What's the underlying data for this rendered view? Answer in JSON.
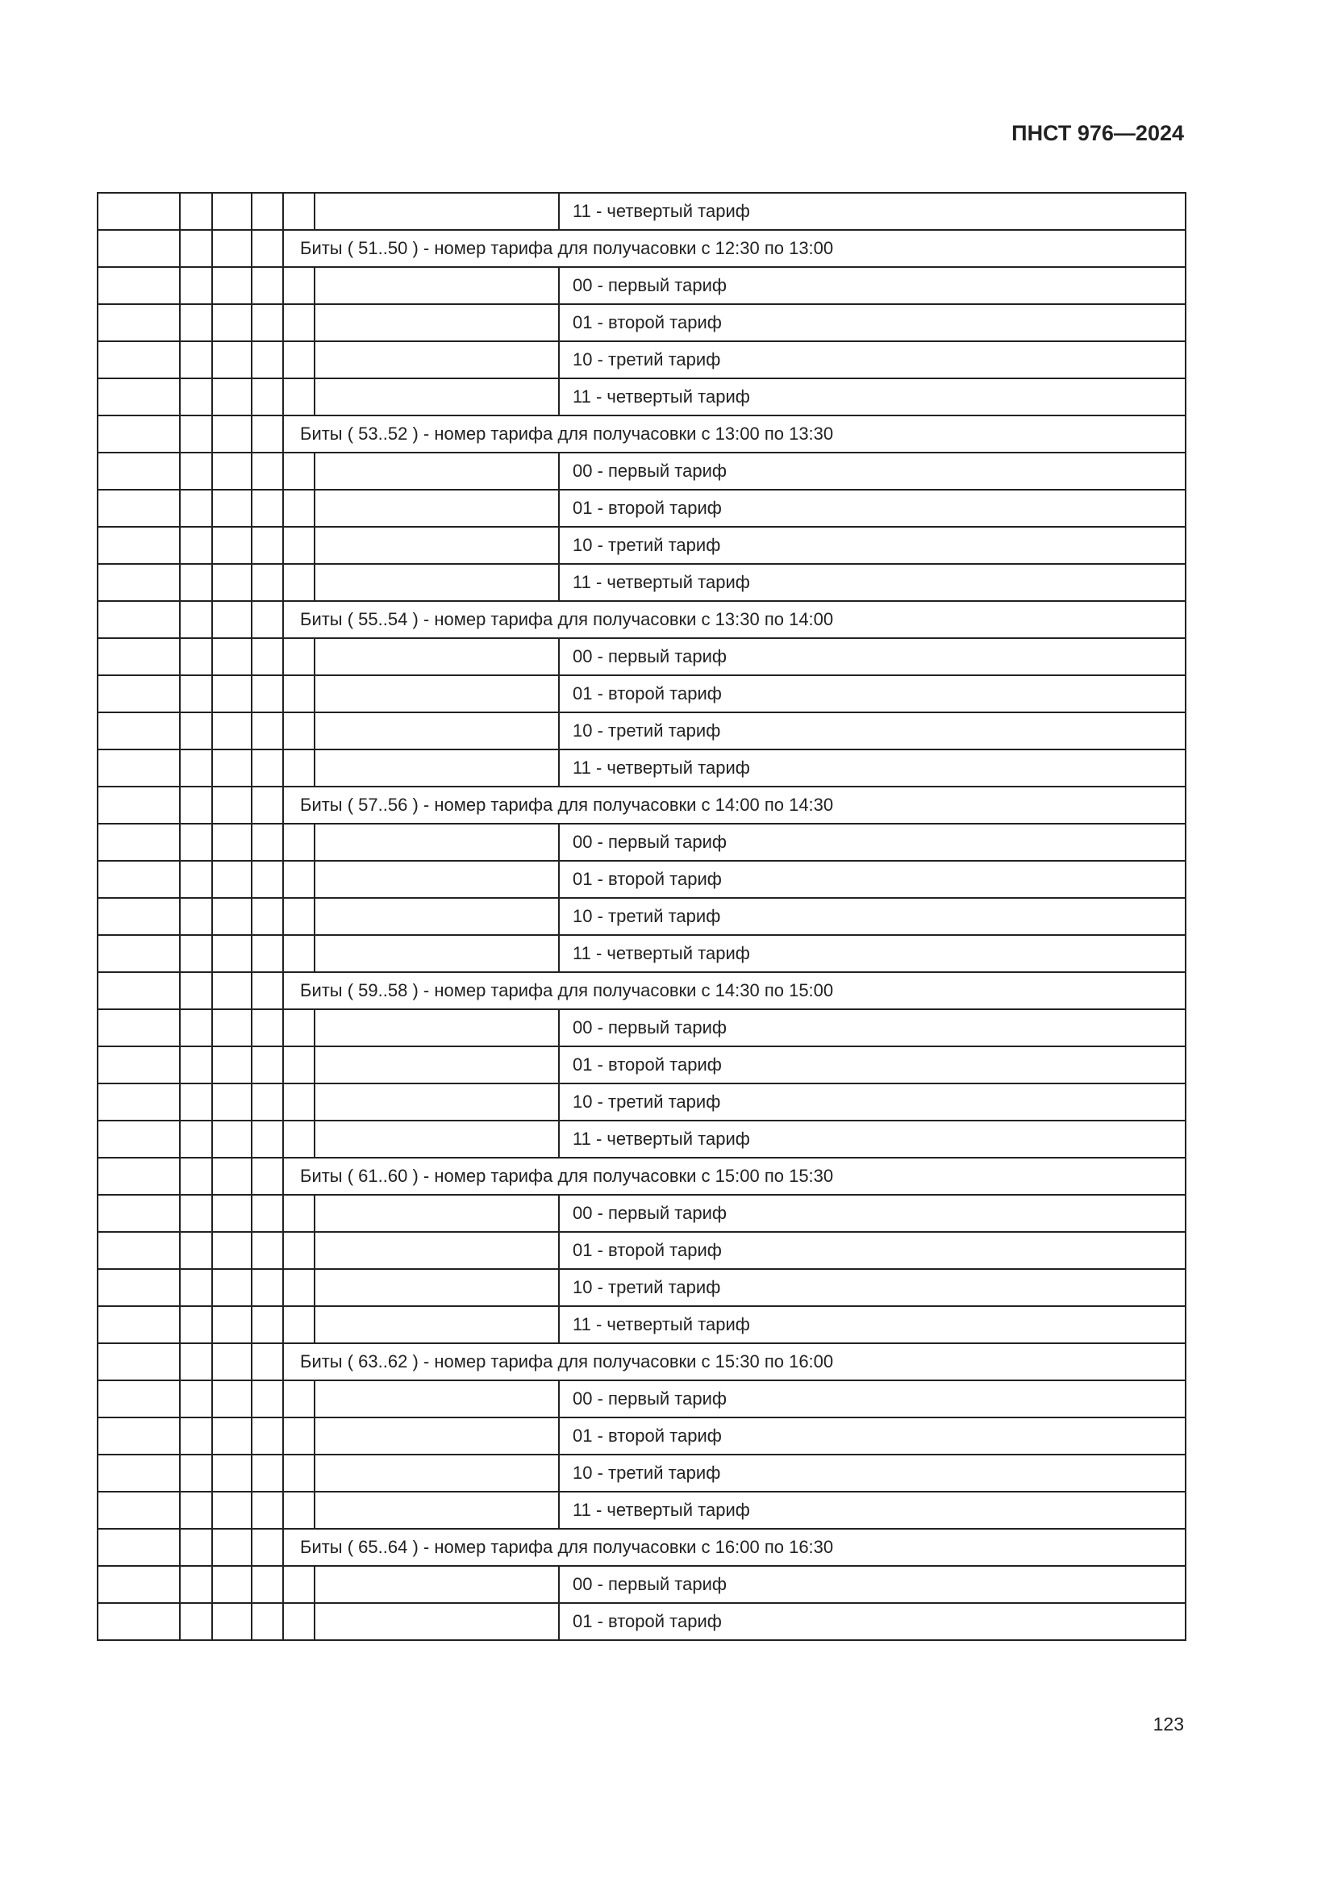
{
  "header": {
    "doc_id": "ПНСТ 976—2024"
  },
  "footer": {
    "page_number": "123"
  },
  "table": {
    "first_row_option": "11 - четвертый тариф",
    "groups": [
      {
        "header": "Биты ( 51..50 ) - номер тарифа для получасовки с 12:30 по 13:00",
        "options": [
          "00 - первый тариф",
          "01 - второй тариф",
          "10 - третий тариф",
          "11 - четвертый тариф"
        ]
      },
      {
        "header": "Биты ( 53..52 ) - номер тарифа для получасовки с 13:00 по 13:30",
        "options": [
          "00 - первый тариф",
          "01 - второй тариф",
          "10 - третий тариф",
          "11 - четвертый тариф"
        ]
      },
      {
        "header": "Биты ( 55..54 ) - номер тарифа для получасовки с 13:30 по 14:00",
        "options": [
          "00 - первый тариф",
          "01 - второй тариф",
          "10 - третий тариф",
          "11 - четвертый тариф"
        ]
      },
      {
        "header": "Биты ( 57..56 ) - номер тарифа для получасовки с 14:00 по 14:30",
        "options": [
          "00 - первый тариф",
          "01 - второй тариф",
          "10 - третий тариф",
          "11 - четвертый тариф"
        ]
      },
      {
        "header": "Биты ( 59..58 ) - номер тарифа для получасовки с 14:30 по 15:00",
        "options": [
          "00 - первый тариф",
          "01 - второй тариф",
          "10 - третий тариф",
          "11 - четвертый тариф"
        ]
      },
      {
        "header": "Биты ( 61..60 ) - номер тарифа для получасовки с 15:00 по 15:30",
        "options": [
          "00 - первый тариф",
          "01 - второй тариф",
          "10 - третий тариф",
          "11 - четвертый тариф"
        ]
      },
      {
        "header": "Биты ( 63..62 ) - номер тарифа для получасовки с 15:30 по 16:00",
        "options": [
          "00 - первый тариф",
          "01 - второй тариф",
          "10 - третий тариф",
          "11 - четвертый тариф"
        ]
      },
      {
        "header": "Биты ( 65..64 ) - номер тарифа для получасовки с 16:00 по 16:30",
        "options": [
          "00 - первый тариф",
          "01 - второй тариф"
        ]
      }
    ]
  }
}
